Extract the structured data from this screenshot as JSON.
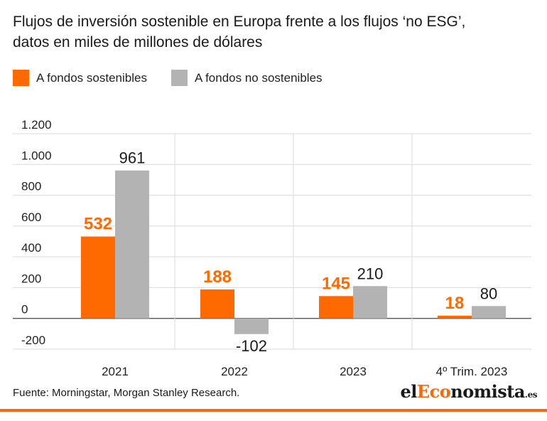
{
  "title_line1": "Flujos de inversión sostenible en Europa frente a los flujos ‘no ESG’,",
  "title_line2": "datos en miles de millones de dólares",
  "source": "Fuente: Morningstar, Morgan Stanley Research.",
  "logo": {
    "prefix": "el",
    "accent": "Eco",
    "rest": "nomista",
    "tld": ".es"
  },
  "colors": {
    "sustainable": "#ff6a00",
    "non_sustainable": "#b3b3b3",
    "grid": "#d9d9d9",
    "accent": "#f26b12"
  },
  "chart_data": {
    "type": "bar",
    "categories": [
      "2021",
      "2022",
      "2023",
      "4º Trim. 2023"
    ],
    "series": [
      {
        "name": "A fondos sostenibles",
        "values": [
          532,
          188,
          145,
          18
        ],
        "labels": [
          "532",
          "188",
          "145",
          "18"
        ]
      },
      {
        "name": "A fondos no sostenibles",
        "values": [
          961,
          -102,
          210,
          80
        ],
        "labels": [
          "961",
          "-102",
          "210",
          "80"
        ]
      }
    ],
    "yticks": [
      1200,
      1000,
      800,
      600,
      400,
      200,
      0,
      -200
    ],
    "ytick_labels": [
      "1.200",
      "1.000",
      "800",
      "600",
      "400",
      "200",
      "0",
      "-200"
    ],
    "ylim": [
      -200,
      1200
    ],
    "grid": true,
    "legend": "top-left"
  }
}
